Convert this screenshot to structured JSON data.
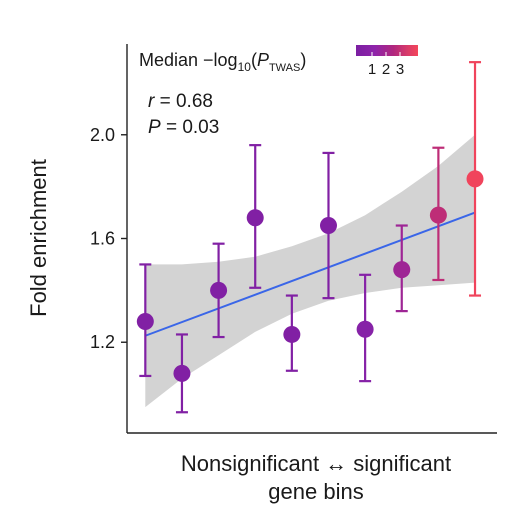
{
  "chart_data": {
    "type": "scatter",
    "xlabel_line1": "Nonsignificant ↔ significant",
    "xlabel_line2": "gene bins",
    "ylabel": "Fold enrichment",
    "yticks": [
      1.2,
      1.6,
      2.0
    ],
    "ytick_labels": [
      "1.2",
      "1.6",
      "2.0"
    ],
    "ylim": [
      0.85,
      2.35
    ],
    "xlim": [
      0.5,
      10.6
    ],
    "x": [
      1,
      2,
      3,
      4,
      5,
      6,
      7,
      8,
      9,
      10
    ],
    "y": [
      1.28,
      1.08,
      1.4,
      1.68,
      1.23,
      1.65,
      1.25,
      1.48,
      1.69,
      1.83
    ],
    "y_low": [
      1.07,
      0.93,
      1.22,
      1.41,
      1.09,
      1.37,
      1.05,
      1.32,
      1.44,
      1.38
    ],
    "y_high": [
      1.5,
      1.23,
      1.58,
      1.96,
      1.38,
      1.93,
      1.46,
      1.65,
      1.95,
      2.28
    ],
    "median_neg_log10_p": [
      1.0,
      1.0,
      1.0,
      1.0,
      1.0,
      1.0,
      1.2,
      1.8,
      2.4,
      3.4
    ],
    "fit": {
      "x": [
        1,
        10
      ],
      "y": [
        1.225,
        1.7
      ],
      "color": "#3a66e8"
    },
    "band": {
      "x": [
        1,
        2,
        3,
        4,
        5,
        6,
        7,
        8,
        9,
        10
      ],
      "lower": [
        0.95,
        1.06,
        1.15,
        1.24,
        1.31,
        1.36,
        1.39,
        1.41,
        1.42,
        1.43
      ],
      "upper": [
        1.5,
        1.5,
        1.51,
        1.53,
        1.57,
        1.62,
        1.69,
        1.78,
        1.88,
        2.0
      ],
      "color": "#d3d3d3"
    },
    "stats": {
      "r_label": "r",
      "r_value": " = 0.68",
      "p_label": "P",
      "p_value": " = 0.03"
    },
    "legend": {
      "title_prefix": "Median −log",
      "title_sub": "10",
      "title_open": "(",
      "title_p": "P",
      "title_p_sub": "TWAS",
      "title_close": ")",
      "tick_labels": [
        "1",
        "2",
        "3"
      ],
      "color_scale": [
        "#7b1fa2",
        "#8e24aa",
        "#b0267e",
        "#d63a6a",
        "#f4465a"
      ]
    },
    "grid": false
  }
}
